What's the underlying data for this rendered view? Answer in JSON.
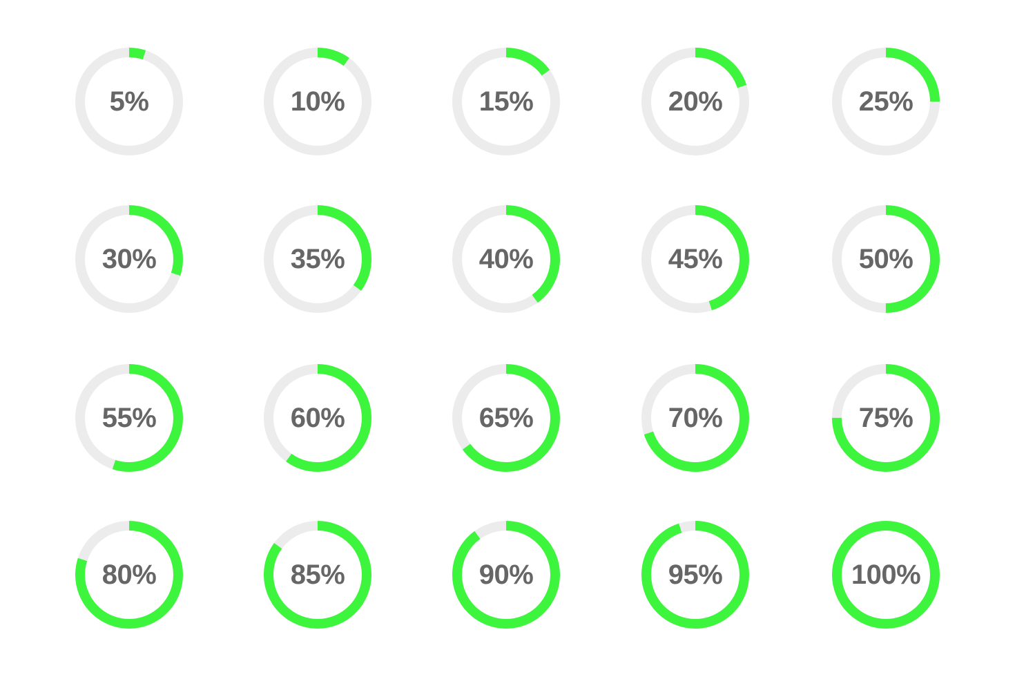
{
  "colors": {
    "track": "#ececec",
    "progress": "#3ef53e",
    "text": "#666666",
    "background": "#ffffff"
  },
  "rings": [
    {
      "label": "5%",
      "value": 0.05
    },
    {
      "label": "10%",
      "value": 0.1
    },
    {
      "label": "15%",
      "value": 0.15
    },
    {
      "label": "20%",
      "value": 0.2
    },
    {
      "label": "25%",
      "value": 0.25
    },
    {
      "label": "30%",
      "value": 0.3
    },
    {
      "label": "35%",
      "value": 0.35
    },
    {
      "label": "40%",
      "value": 0.4
    },
    {
      "label": "45%",
      "value": 0.45
    },
    {
      "label": "50%",
      "value": 0.5
    },
    {
      "label": "55%",
      "value": 0.55
    },
    {
      "label": "60%",
      "value": 0.6
    },
    {
      "label": "65%",
      "value": 0.65
    },
    {
      "label": "70%",
      "value": 0.7
    },
    {
      "label": "75%",
      "value": 0.75
    },
    {
      "label": "80%",
      "value": 0.8
    },
    {
      "label": "85%",
      "value": 0.85
    },
    {
      "label": "90%",
      "value": 0.9
    },
    {
      "label": "95%",
      "value": 0.95
    },
    {
      "label": "100%",
      "value": 1.0
    }
  ]
}
